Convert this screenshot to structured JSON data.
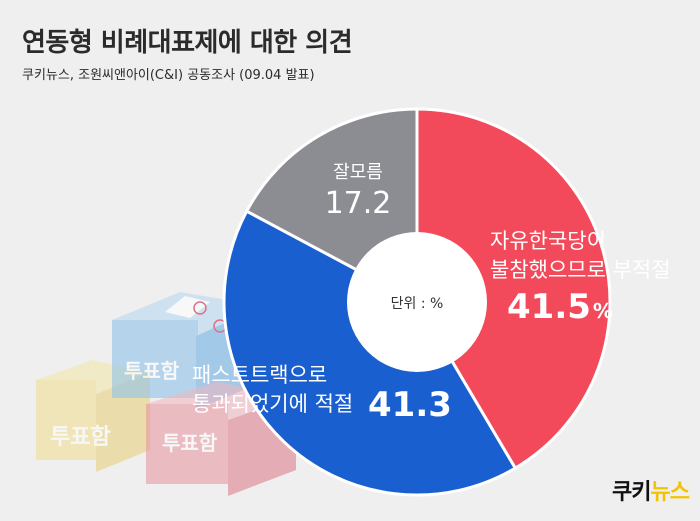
{
  "header": {
    "title": "연동형 비례대표제에 대한 의견",
    "subtitle": "쿠키뉴스, 조원씨앤아이(C&I) 공동조사 (09.04 발표)"
  },
  "decoration": {
    "ballot_box_label": "투표함"
  },
  "brand": {
    "logo_part1": "쿠키",
    "logo_part2": "뉴스"
  },
  "chart_data": {
    "type": "pie",
    "variant": "donut",
    "center_label": "단위 : %",
    "slices": [
      {
        "label_lines": [
          "자유한국당이",
          "불참했으므로 부적절"
        ],
        "value": 41.5,
        "value_text": "41.5",
        "unit": "%",
        "color": "#f24a5a"
      },
      {
        "label_lines": [
          "패스트트랙으로",
          "통과되었기에 적절"
        ],
        "value": 41.3,
        "value_text": "41.3",
        "unit": "",
        "color": "#1a5fcf"
      },
      {
        "label_lines": [
          "잘모름"
        ],
        "value": 17.2,
        "value_text": "17.2",
        "unit": "",
        "color": "#8c8c93"
      }
    ]
  }
}
